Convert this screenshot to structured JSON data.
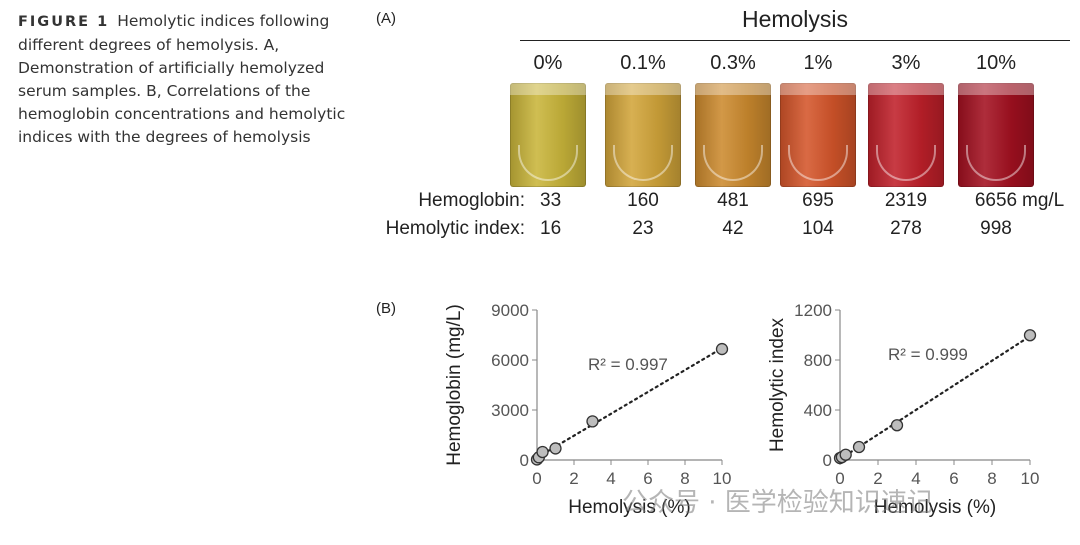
{
  "caption": {
    "figure_label": "FIGURE 1",
    "text": "Hemolytic indices following different degrees of hemolysis. A, Demonstration of artificially hemolyzed serum samples. B, Correlations of the hemoglobin concentrations and hemolytic indices with the degrees of hemolysis"
  },
  "panel_a": {
    "label": "(A)",
    "title": "Hemolysis",
    "percent_labels": [
      "0%",
      "0.1%",
      "0.3%",
      "1%",
      "3%",
      "10%"
    ],
    "tube_colors": [
      "#c9b53a",
      "#d2a53a",
      "#cc8a2e",
      "#d4552a",
      "#c0202a",
      "#a31020"
    ],
    "hemoglobin_label": "Hemoglobin:",
    "hemoglobin_values": [
      "33",
      "160",
      "481",
      "695",
      "2319",
      "6656"
    ],
    "hemoglobin_unit": "mg/L",
    "index_label": "Hemolytic index:",
    "index_values": [
      "16",
      "23",
      "42",
      "104",
      "278",
      "998"
    ]
  },
  "panel_b_label": "(B)",
  "chart_data": [
    {
      "type": "scatter",
      "xlabel": "Hemolysis (%)",
      "ylabel": "Hemoglobin (mg/L)",
      "xlim": [
        0,
        10
      ],
      "ylim": [
        0,
        9000
      ],
      "xticks": [
        0,
        2,
        4,
        6,
        8,
        10
      ],
      "yticks": [
        0,
        3000,
        6000,
        9000
      ],
      "x": [
        0,
        0.1,
        0.3,
        1,
        3,
        10
      ],
      "y": [
        33,
        160,
        481,
        695,
        2319,
        6656
      ],
      "trendline": "linear",
      "annotation": "R² = 0.997"
    },
    {
      "type": "scatter",
      "xlabel": "Hemolysis (%)",
      "ylabel": "Hemolytic index",
      "xlim": [
        0,
        10
      ],
      "ylim": [
        0,
        1200
      ],
      "xticks": [
        0,
        2,
        4,
        6,
        8,
        10
      ],
      "yticks": [
        0,
        400,
        800,
        1200
      ],
      "x": [
        0,
        0.1,
        0.3,
        1,
        3,
        10
      ],
      "y": [
        16,
        23,
        42,
        104,
        278,
        998
      ],
      "trendline": "linear",
      "annotation": "R² = 0.999"
    }
  ],
  "watermark": "公众号 · 医学检验知识速记"
}
